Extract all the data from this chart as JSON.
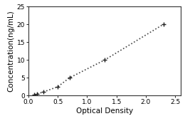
{
  "x_data": [
    0.1,
    0.15,
    0.25,
    0.5,
    0.7,
    1.3,
    2.3
  ],
  "y_data": [
    0.3,
    0.5,
    1.0,
    2.5,
    5.0,
    10.0,
    20.0
  ],
  "xlabel": "Optical Density",
  "ylabel": "Concentration(ng/mL)",
  "xlim": [
    0,
    2.6
  ],
  "ylim": [
    0,
    25
  ],
  "xticks": [
    0,
    0.5,
    1.0,
    1.5,
    2.0,
    2.5
  ],
  "yticks": [
    0,
    5,
    10,
    15,
    20,
    25
  ],
  "line_color": "#444444",
  "marker_color": "#222222",
  "background_color": "#ffffff",
  "plot_bg_color": "#ffffff",
  "marker": "+",
  "linestyle": "dotted",
  "linewidth": 1.2,
  "markersize": 5,
  "markeredgewidth": 1.0,
  "tick_fontsize": 6.5,
  "label_fontsize": 7.5,
  "fig_width": 2.6,
  "fig_height": 1.7
}
